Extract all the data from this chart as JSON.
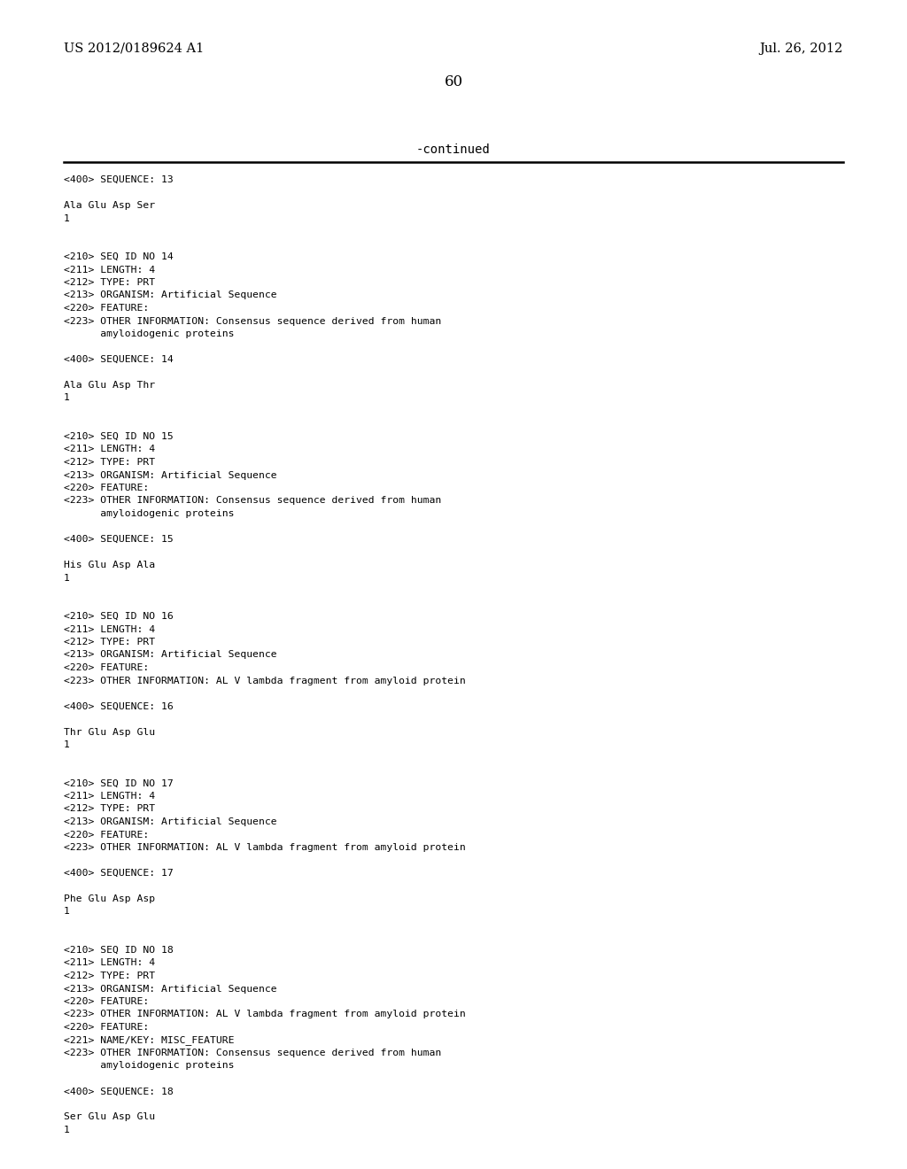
{
  "header_left": "US 2012/0189624 A1",
  "header_right": "Jul. 26, 2012",
  "page_number": "60",
  "continued_text": "-continued",
  "background_color": "#ffffff",
  "text_color": "#000000",
  "figwidth": 10.24,
  "figheight": 13.2,
  "dpi": 100,
  "content": [
    "<400> SEQUENCE: 13",
    "",
    "Ala Glu Asp Ser",
    "1",
    "",
    "",
    "<210> SEQ ID NO 14",
    "<211> LENGTH: 4",
    "<212> TYPE: PRT",
    "<213> ORGANISM: Artificial Sequence",
    "<220> FEATURE:",
    "<223> OTHER INFORMATION: Consensus sequence derived from human",
    "      amyloidogenic proteins",
    "",
    "<400> SEQUENCE: 14",
    "",
    "Ala Glu Asp Thr",
    "1",
    "",
    "",
    "<210> SEQ ID NO 15",
    "<211> LENGTH: 4",
    "<212> TYPE: PRT",
    "<213> ORGANISM: Artificial Sequence",
    "<220> FEATURE:",
    "<223> OTHER INFORMATION: Consensus sequence derived from human",
    "      amyloidogenic proteins",
    "",
    "<400> SEQUENCE: 15",
    "",
    "His Glu Asp Ala",
    "1",
    "",
    "",
    "<210> SEQ ID NO 16",
    "<211> LENGTH: 4",
    "<212> TYPE: PRT",
    "<213> ORGANISM: Artificial Sequence",
    "<220> FEATURE:",
    "<223> OTHER INFORMATION: AL V lambda fragment from amyloid protein",
    "",
    "<400> SEQUENCE: 16",
    "",
    "Thr Glu Asp Glu",
    "1",
    "",
    "",
    "<210> SEQ ID NO 17",
    "<211> LENGTH: 4",
    "<212> TYPE: PRT",
    "<213> ORGANISM: Artificial Sequence",
    "<220> FEATURE:",
    "<223> OTHER INFORMATION: AL V lambda fragment from amyloid protein",
    "",
    "<400> SEQUENCE: 17",
    "",
    "Phe Glu Asp Asp",
    "1",
    "",
    "",
    "<210> SEQ ID NO 18",
    "<211> LENGTH: 4",
    "<212> TYPE: PRT",
    "<213> ORGANISM: Artificial Sequence",
    "<220> FEATURE:",
    "<223> OTHER INFORMATION: AL V lambda fragment from amyloid protein",
    "<220> FEATURE:",
    "<221> NAME/KEY: MISC_FEATURE",
    "<223> OTHER INFORMATION: Consensus sequence derived from human",
    "      amyloidogenic proteins",
    "",
    "<400> SEQUENCE: 18",
    "",
    "Ser Glu Asp Glu",
    "1"
  ]
}
